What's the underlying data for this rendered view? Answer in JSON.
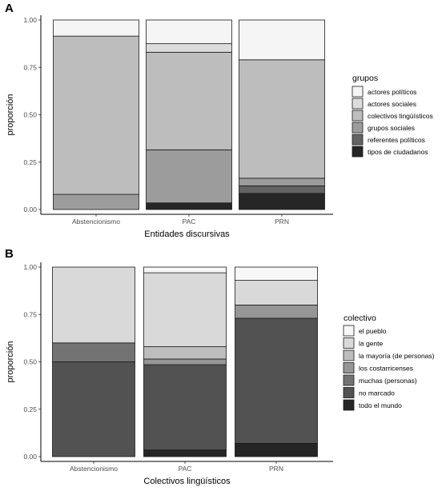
{
  "chart_data": [
    {
      "panel_label": "A",
      "type": "bar",
      "stacked": true,
      "categories": [
        "Abstencionismo",
        "PAC",
        "PRN"
      ],
      "xlabel": "Entidades discursivas",
      "ylabel": "proporción",
      "ylim": [
        0,
        1
      ],
      "yticks": [
        "0.00",
        "0.25",
        "0.50",
        "0.75",
        "1.00"
      ],
      "legend_title": "grupos",
      "legend_position": "right",
      "grid": false,
      "series": [
        {
          "name": "actores políticos",
          "color": "#f5f5f5",
          "values": [
            0.085,
            0.125,
            0.21
          ]
        },
        {
          "name": "actores sociales",
          "color": "#dcdcdc",
          "values": [
            0.0,
            0.045,
            0.0
          ]
        },
        {
          "name": "colectivos lingüísticos",
          "color": "#bdbdbd",
          "values": [
            0.835,
            0.515,
            0.625
          ]
        },
        {
          "name": "grupos sociales",
          "color": "#9c9c9c",
          "values": [
            0.08,
            0.28,
            0.04
          ]
        },
        {
          "name": "referentes políticos",
          "color": "#636363",
          "values": [
            0.0,
            0.0,
            0.04
          ]
        },
        {
          "name": "tipos de ciudadanos",
          "color": "#262626",
          "values": [
            0.0,
            0.035,
            0.085
          ]
        }
      ]
    },
    {
      "panel_label": "B",
      "type": "bar",
      "stacked": true,
      "categories": [
        "Abstencionismo",
        "PAC",
        "PRN"
      ],
      "xlabel": "Colectivos lingüísticos",
      "ylabel": "proporción",
      "ylim": [
        0,
        1
      ],
      "yticks": [
        "0.00",
        "0.25",
        "0.50",
        "0.75",
        "1.00"
      ],
      "legend_title": "colectivo",
      "legend_position": "right",
      "grid": false,
      "series": [
        {
          "name": "el pueblo",
          "color": "#f7f7f7",
          "values": [
            0.0,
            0.03,
            0.07
          ]
        },
        {
          "name": "la gente",
          "color": "#d9d9d9",
          "values": [
            0.4,
            0.39,
            0.13
          ]
        },
        {
          "name": "la mayoría (de personas)",
          "color": "#bdbdbd",
          "values": [
            0.0,
            0.065,
            0.0
          ]
        },
        {
          "name": "los costarricenses",
          "color": "#969696",
          "values": [
            0.0,
            0.03,
            0.07
          ]
        },
        {
          "name": "muchas (personas)",
          "color": "#737373",
          "values": [
            0.1,
            0.0,
            0.0
          ]
        },
        {
          "name": "no marcado",
          "color": "#525252",
          "values": [
            0.5,
            0.45,
            0.66
          ]
        },
        {
          "name": "todo el mundo",
          "color": "#252525",
          "values": [
            0.0,
            0.035,
            0.07
          ]
        }
      ]
    }
  ]
}
